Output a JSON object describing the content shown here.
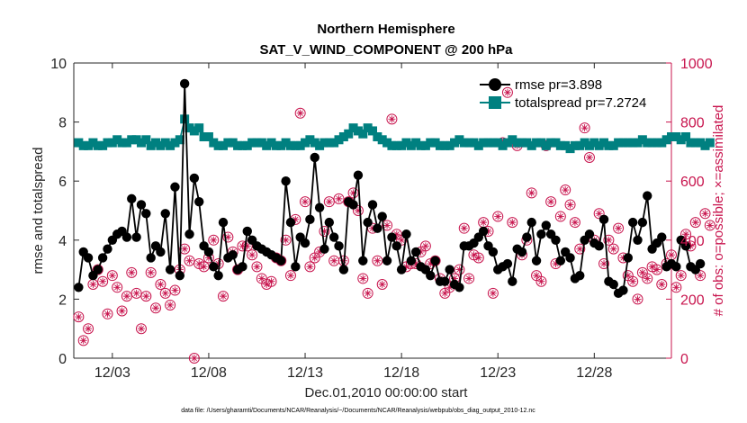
{
  "chart_data": {
    "type": "line",
    "title": "Northern Hemisphere",
    "subtitle": "SAT_V_WIND_COMPONENT @ 200 hPa",
    "xlabel": "Dec.01,2010 00:00:00 start",
    "ylabel_left": "rmse and totalspread",
    "ylabel_right": "# of obs: o=possible; ×=assimilated",
    "footer": "data file: /Users/gharamti/Documents/NCAR/Reanalysis/~/Documents/NCAR/Reanalysis/webpub/obs_diag_output_2010-12.nc",
    "x_ticks": [
      {
        "day": 3,
        "label": "12/03"
      },
      {
        "day": 8,
        "label": "12/08"
      },
      {
        "day": 13,
        "label": "12/13"
      },
      {
        "day": 18,
        "label": "12/18"
      },
      {
        "day": 23,
        "label": "12/23"
      },
      {
        "day": 28,
        "label": "12/28"
      }
    ],
    "xlim": [
      1,
      32
    ],
    "ylim_left": [
      0,
      10
    ],
    "ylim_right": [
      0,
      1000
    ],
    "yticks_left": [
      "0",
      "2",
      "4",
      "6",
      "8",
      "10"
    ],
    "yticks_right": [
      "0",
      "200",
      "400",
      "600",
      "800",
      "1000"
    ],
    "x_start": 1.25,
    "x_step": 0.25,
    "colors": {
      "rmse": "#000000",
      "spread": "#008080",
      "obs": "#c8154e",
      "axis": "#262626"
    },
    "series": [
      {
        "name": "rmse",
        "legend": "rmse pr=3.898",
        "axis": "left",
        "values": [
          2.4,
          3.6,
          3.4,
          2.8,
          3.0,
          3.4,
          3.7,
          4.0,
          4.2,
          4.3,
          4.1,
          5.4,
          4.1,
          5.2,
          4.9,
          3.4,
          3.8,
          3.6,
          4.9,
          3.0,
          5.8,
          2.8,
          9.3,
          4.2,
          6.1,
          5.3,
          3.8,
          3.6,
          3.1,
          2.8,
          4.6,
          3.4,
          3.5,
          3.0,
          3.1,
          4.3,
          4.0,
          3.8,
          3.7,
          3.6,
          3.5,
          3.4,
          3.3,
          6.0,
          4.6,
          3.1,
          4.1,
          3.9,
          4.7,
          6.8,
          5.1,
          3.7,
          4.6,
          4.1,
          3.8,
          3.0,
          5.3,
          5.2,
          6.2,
          3.3,
          4.6,
          5.2,
          4.4,
          4.8,
          3.3,
          4.1,
          3.8,
          3.0,
          4.2,
          3.3,
          3.6,
          3.1,
          3.0,
          2.8,
          3.3,
          2.6,
          2.6,
          3.0,
          2.5,
          2.4,
          3.8,
          3.8,
          3.9,
          4.1,
          4.3,
          3.8,
          3.6,
          3.0,
          3.1,
          3.2,
          2.6,
          3.7,
          3.6,
          4.1,
          4.6,
          3.3,
          4.2,
          4.5,
          4.2,
          4.0,
          3.3,
          3.6,
          3.4,
          2.7,
          2.8,
          4.0,
          4.2,
          3.9,
          3.8,
          4.7,
          2.6,
          2.5,
          2.2,
          2.3,
          3.4,
          4.6,
          4.0,
          4.6,
          5.5,
          3.7,
          3.9,
          4.1,
          3.1,
          3.2,
          3.1,
          4.0,
          3.8,
          3.1,
          3.0,
          3.2
        ]
      },
      {
        "name": "totalspread",
        "legend": "totalspread pr=7.2724",
        "axis": "left",
        "values": [
          7.3,
          7.2,
          7.2,
          7.3,
          7.2,
          7.2,
          7.3,
          7.3,
          7.4,
          7.3,
          7.3,
          7.4,
          7.4,
          7.3,
          7.4,
          7.2,
          7.3,
          7.2,
          7.3,
          7.2,
          7.3,
          7.4,
          8.1,
          7.8,
          7.7,
          7.8,
          7.5,
          7.5,
          7.3,
          7.2,
          7.2,
          7.3,
          7.3,
          7.2,
          7.2,
          7.2,
          7.3,
          7.3,
          7.3,
          7.2,
          7.3,
          7.2,
          7.2,
          7.3,
          7.2,
          7.2,
          7.2,
          7.3,
          7.4,
          7.3,
          7.2,
          7.3,
          7.3,
          7.3,
          7.4,
          7.5,
          7.6,
          7.8,
          7.7,
          7.6,
          7.8,
          7.7,
          7.5,
          7.4,
          7.3,
          7.2,
          7.2,
          7.2,
          7.3,
          7.2,
          7.3,
          7.2,
          7.2,
          7.3,
          7.3,
          7.2,
          7.2,
          7.2,
          7.3,
          7.4,
          7.3,
          7.3,
          7.3,
          7.2,
          7.3,
          7.3,
          7.3,
          7.3,
          7.2,
          7.3,
          7.4,
          7.3,
          7.3,
          7.3,
          7.2,
          7.3,
          7.3,
          7.2,
          7.3,
          7.3,
          7.2,
          7.2,
          7.1,
          7.2,
          7.2,
          7.3,
          7.2,
          7.3,
          7.2,
          7.3,
          7.2,
          7.2,
          7.3,
          7.3,
          7.3,
          7.3,
          7.3,
          7.4,
          7.3,
          7.3,
          7.3,
          7.3,
          7.4,
          7.5,
          7.5,
          7.4,
          7.5,
          7.3,
          7.3,
          7.3,
          7.2,
          7.3
        ]
      },
      {
        "name": "obs_possible_assimilated",
        "legend": "# of obs",
        "axis": "right",
        "values": [
          140,
          60,
          100,
          250,
          300,
          260,
          150,
          280,
          240,
          160,
          210,
          290,
          220,
          100,
          210,
          290,
          170,
          250,
          220,
          180,
          230,
          300,
          370,
          330,
          0,
          320,
          310,
          340,
          400,
          320,
          210,
          410,
          360,
          300,
          380,
          380,
          350,
          310,
          270,
          250,
          260,
          340,
          330,
          400,
          280,
          470,
          830,
          530,
          310,
          340,
          360,
          430,
          530,
          330,
          540,
          330,
          530,
          560,
          500,
          270,
          220,
          440,
          330,
          250,
          450,
          810,
          420,
          400,
          310,
          320,
          320,
          360,
          380,
          320,
          330,
          270,
          220,
          240,
          270,
          300,
          440,
          270,
          350,
          340,
          460,
          430,
          220,
          480,
          730,
          900,
          460,
          720,
          350,
          400,
          560,
          280,
          260,
          720,
          530,
          320,
          480,
          570,
          520,
          460,
          370,
          780,
          680,
          400,
          490,
          320,
          400,
          370,
          440,
          340,
          280,
          260,
          200,
          290,
          270,
          310,
          300,
          250,
          320,
          350,
          240,
          280,
          420,
          380,
          460,
          280,
          490,
          450
        ]
      }
    ]
  }
}
